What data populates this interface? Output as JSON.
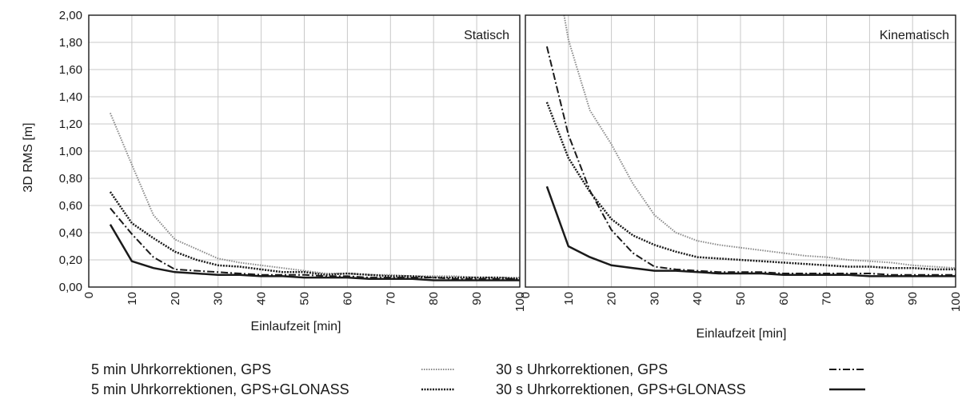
{
  "chart_data": {
    "type": "line",
    "ylabel": "3D RMS [m]",
    "xlabel": "Einlaufzeit [min]",
    "xlim": [
      0,
      100
    ],
    "ylim": [
      0,
      2.0
    ],
    "x_ticks": [
      "0",
      "10",
      "20",
      "30",
      "40",
      "50",
      "60",
      "70",
      "80",
      "90",
      "100"
    ],
    "y_ticks": [
      "0,00",
      "0,20",
      "0,40",
      "0,60",
      "0,80",
      "1,00",
      "1,20",
      "1,40",
      "1,60",
      "1,80",
      "2,00"
    ],
    "grid": true,
    "legend_position": "bottom",
    "legend": [
      {
        "label": "5 min Uhrkorrektionen, GPS",
        "style": "dotted-gray"
      },
      {
        "label": "5 min Uhrkorrektionen, GPS+GLONASS",
        "style": "dotted-black"
      },
      {
        "label": "30 s Uhrkorrektionen, GPS",
        "style": "dash-dot"
      },
      {
        "label": "30 s Uhrkorrektionen, GPS+GLONASS",
        "style": "solid"
      }
    ],
    "panels": [
      {
        "label": "Statisch",
        "series": [
          {
            "name": "5 min Uhrkorrektionen, GPS",
            "x": [
              5,
              10,
              15,
              20,
              25,
              30,
              35,
              40,
              45,
              50,
              55,
              60,
              65,
              70,
              75,
              80,
              85,
              90,
              95,
              100
            ],
            "values": [
              1.28,
              0.9,
              0.53,
              0.35,
              0.28,
              0.21,
              0.18,
              0.16,
              0.14,
              0.12,
              0.1,
              0.1,
              0.09,
              0.09,
              0.08,
              0.08,
              0.08,
              0.07,
              0.07,
              0.07
            ]
          },
          {
            "name": "5 min Uhrkorrektionen, GPS+GLONASS",
            "x": [
              5,
              10,
              15,
              20,
              25,
              30,
              35,
              40,
              45,
              50,
              55,
              60,
              65,
              70,
              75,
              80,
              85,
              90,
              95,
              100
            ],
            "values": [
              0.7,
              0.47,
              0.36,
              0.26,
              0.2,
              0.16,
              0.15,
              0.13,
              0.11,
              0.11,
              0.09,
              0.1,
              0.09,
              0.08,
              0.08,
              0.07,
              0.07,
              0.07,
              0.07,
              0.06
            ]
          },
          {
            "name": "30 s Uhrkorrektionen, GPS",
            "x": [
              5,
              10,
              15,
              20,
              25,
              30,
              35,
              40,
              45,
              50,
              55,
              60,
              65,
              70,
              75,
              80,
              85,
              90,
              95,
              100
            ],
            "values": [
              0.58,
              0.39,
              0.22,
              0.13,
              0.12,
              0.11,
              0.1,
              0.09,
              0.09,
              0.09,
              0.08,
              0.08,
              0.07,
              0.07,
              0.07,
              0.07,
              0.06,
              0.06,
              0.06,
              0.06
            ]
          },
          {
            "name": "30 s Uhrkorrektionen, GPS+GLONASS",
            "x": [
              5,
              10,
              15,
              20,
              25,
              30,
              35,
              40,
              45,
              50,
              55,
              60,
              65,
              70,
              75,
              80,
              85,
              90,
              95,
              100
            ],
            "values": [
              0.46,
              0.19,
              0.14,
              0.11,
              0.1,
              0.09,
              0.09,
              0.08,
              0.08,
              0.07,
              0.07,
              0.07,
              0.06,
              0.06,
              0.06,
              0.05,
              0.05,
              0.05,
              0.05,
              0.05
            ]
          }
        ]
      },
      {
        "label": "Kinematisch",
        "series": [
          {
            "name": "5 min Uhrkorrektionen, GPS",
            "x": [
              9,
              10,
              15,
              20,
              25,
              30,
              35,
              40,
              45,
              50,
              55,
              60,
              65,
              70,
              75,
              80,
              85,
              90,
              95,
              100
            ],
            "values": [
              2.0,
              1.82,
              1.3,
              1.05,
              0.76,
              0.53,
              0.4,
              0.34,
              0.31,
              0.29,
              0.27,
              0.25,
              0.23,
              0.22,
              0.2,
              0.19,
              0.18,
              0.16,
              0.15,
              0.14
            ]
          },
          {
            "name": "5 min Uhrkorrektionen, GPS+GLONASS",
            "x": [
              5,
              10,
              15,
              20,
              25,
              30,
              35,
              40,
              45,
              50,
              55,
              60,
              65,
              70,
              75,
              80,
              85,
              90,
              95,
              100
            ],
            "values": [
              1.36,
              0.95,
              0.7,
              0.5,
              0.38,
              0.31,
              0.26,
              0.22,
              0.21,
              0.2,
              0.19,
              0.18,
              0.17,
              0.16,
              0.15,
              0.15,
              0.14,
              0.14,
              0.13,
              0.13
            ]
          },
          {
            "name": "30 s Uhrkorrektionen, GPS",
            "x": [
              5,
              10,
              15,
              20,
              25,
              30,
              35,
              40,
              45,
              50,
              55,
              60,
              65,
              70,
              75,
              80,
              85,
              90,
              95,
              100
            ],
            "values": [
              1.77,
              1.12,
              0.71,
              0.42,
              0.25,
              0.15,
              0.13,
              0.12,
              0.11,
              0.11,
              0.11,
              0.1,
              0.1,
              0.1,
              0.1,
              0.1,
              0.09,
              0.09,
              0.09,
              0.09
            ]
          },
          {
            "name": "30 s Uhrkorrektionen, GPS+GLONASS",
            "x": [
              5,
              10,
              15,
              20,
              25,
              30,
              35,
              40,
              45,
              50,
              55,
              60,
              65,
              70,
              75,
              80,
              85,
              90,
              95,
              100
            ],
            "values": [
              0.74,
              0.3,
              0.22,
              0.16,
              0.14,
              0.12,
              0.12,
              0.11,
              0.1,
              0.1,
              0.1,
              0.09,
              0.09,
              0.09,
              0.09,
              0.08,
              0.08,
              0.08,
              0.08,
              0.08
            ]
          }
        ]
      }
    ]
  }
}
